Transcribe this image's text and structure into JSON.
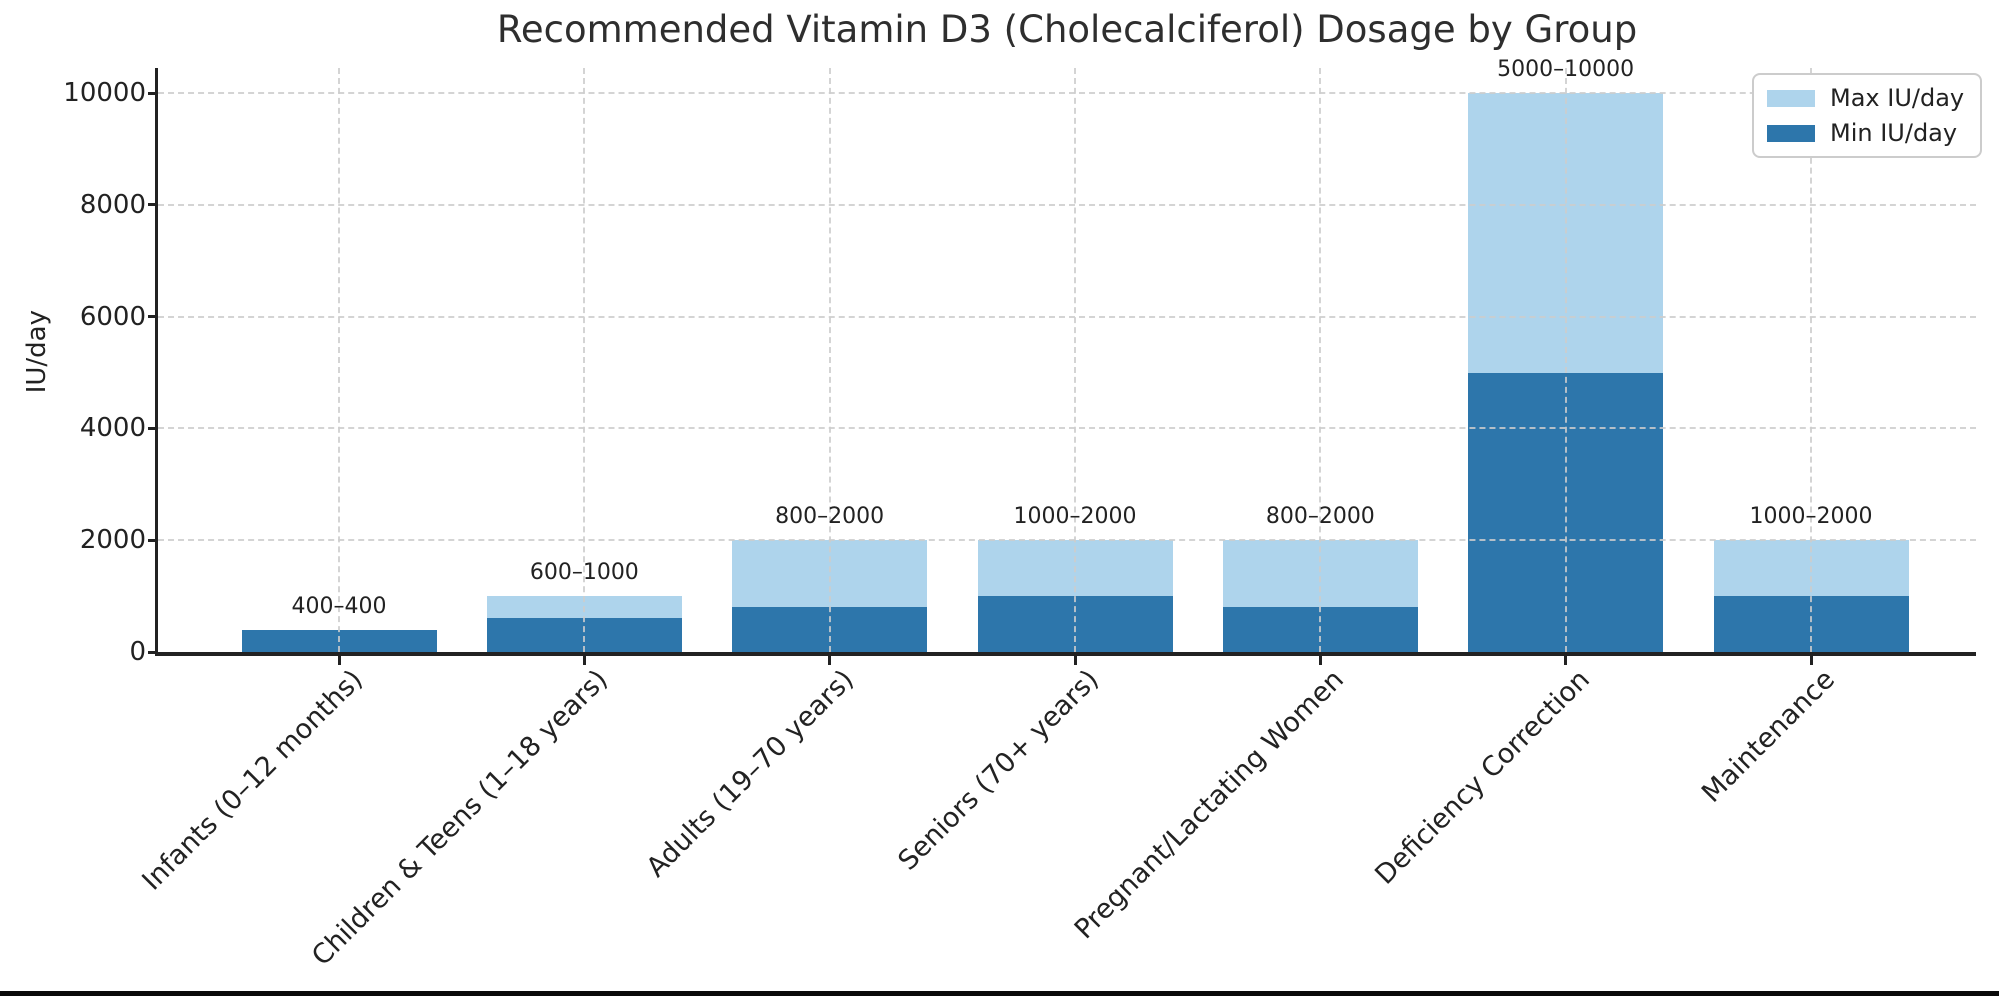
{
  "chart_data": {
    "type": "bar",
    "title": "Recommended Vitamin D3 (Cholecalciferol) Dosage by Group",
    "xlabel": "",
    "ylabel": "IU/day",
    "categories": [
      "Infants (0–12 months)",
      "Children & Teens (1–18 years)",
      "Adults (19–70 years)",
      "Seniors (70+ years)",
      "Pregnant/Lactating Women",
      "Deficiency Correction",
      "Maintenance"
    ],
    "series": [
      {
        "name": "Max IU/day",
        "color": "#aed4ec",
        "values": [
          400,
          1000,
          2000,
          2000,
          2000,
          10000,
          2000
        ]
      },
      {
        "name": "Min IU/day",
        "color": "#2d76ab",
        "values": [
          400,
          600,
          800,
          1000,
          800,
          5000,
          1000
        ]
      }
    ],
    "bar_labels": [
      "400–400",
      "600–1000",
      "800–2000",
      "1000–2000",
      "800–2000",
      "5000–10000",
      "1000–2000"
    ],
    "yticks": [
      0,
      2000,
      4000,
      6000,
      8000,
      10000
    ],
    "ylim": [
      0,
      10450
    ],
    "legend_position": "upper right",
    "grid": "dashed, horizontal and vertical, drawn above bars",
    "colors": {
      "grid": "#cccccc",
      "spine": "#222222",
      "text": "#222222",
      "background": "#ffffff",
      "bottom_strip": "#0a0a0a"
    }
  }
}
